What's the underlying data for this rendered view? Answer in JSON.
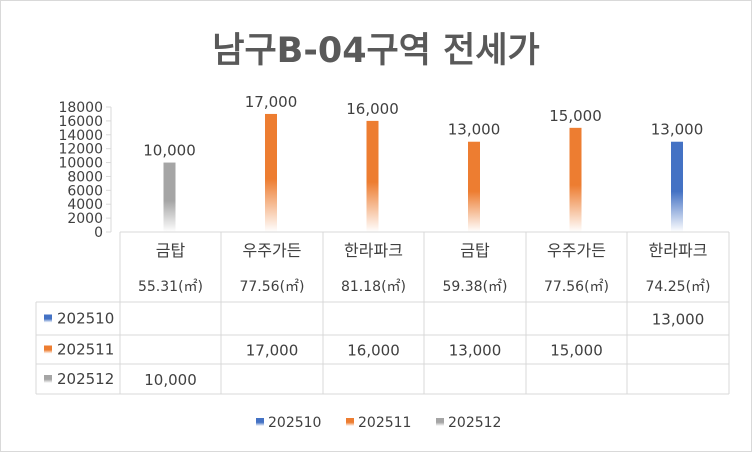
{
  "chart_data": {
    "type": "bar",
    "title": "남구B-04구역 전세가",
    "categories": [
      {
        "name": "금탑",
        "area": "55.31(㎡)"
      },
      {
        "name": "우주가든",
        "area": "77.56(㎡)"
      },
      {
        "name": "한라파크",
        "area": "81.18(㎡)"
      },
      {
        "name": "금탑",
        "area": "59.38(㎡)"
      },
      {
        "name": "우주가든",
        "area": "77.56(㎡)"
      },
      {
        "name": "한라파크",
        "area": "74.25(㎡)"
      }
    ],
    "series": [
      {
        "name": "202510",
        "color": "#4472C4",
        "values": [
          null,
          null,
          null,
          null,
          null,
          13000
        ]
      },
      {
        "name": "202511",
        "color": "#ED7D31",
        "values": [
          null,
          17000,
          16000,
          13000,
          15000,
          null
        ]
      },
      {
        "name": "202512",
        "color": "#A5A5A5",
        "values": [
          10000,
          null,
          null,
          null,
          null,
          null
        ]
      }
    ],
    "data_labels": [
      "10,000",
      "17,000",
      "16,000",
      "13,000",
      "15,000",
      "13,000"
    ],
    "table_rows": [
      [
        "",
        "",
        "",
        "",
        "",
        "13,000"
      ],
      [
        "",
        "17,000",
        "16,000",
        "13,000",
        "15,000",
        ""
      ],
      [
        "10,000",
        "",
        "",
        "",
        "",
        ""
      ]
    ],
    "ylim": [
      0,
      18000
    ],
    "yticks": [
      "0",
      "2000",
      "4000",
      "6000",
      "8000",
      "10000",
      "12000",
      "14000",
      "16000",
      "18000"
    ],
    "grid": false,
    "legend_position": "bottom",
    "xlabel": "",
    "ylabel": ""
  }
}
